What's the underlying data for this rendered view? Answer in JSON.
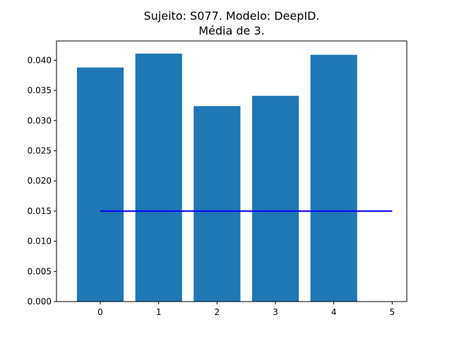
{
  "chart_data": {
    "type": "bar",
    "title_line1": "Sujeito: S077. Modelo: DeepID.",
    "title_line2": "Média de 3.",
    "xlabel": "",
    "ylabel": "",
    "categories": [
      0,
      1,
      2,
      3,
      4
    ],
    "values": [
      0.0388,
      0.0411,
      0.0324,
      0.0341,
      0.0409
    ],
    "bar_color": "#1f77b4",
    "xlim": [
      -0.75,
      5.25
    ],
    "ylim": [
      0.0,
      0.0432
    ],
    "x_ticks": [
      0,
      1,
      2,
      3,
      4,
      5
    ],
    "y_ticks": [
      "0.000",
      "0.005",
      "0.010",
      "0.015",
      "0.020",
      "0.025",
      "0.030",
      "0.035",
      "0.040"
    ],
    "reference_line": {
      "y": 0.015,
      "x_start": 0,
      "x_end": 5,
      "color": "#0000ff"
    }
  }
}
